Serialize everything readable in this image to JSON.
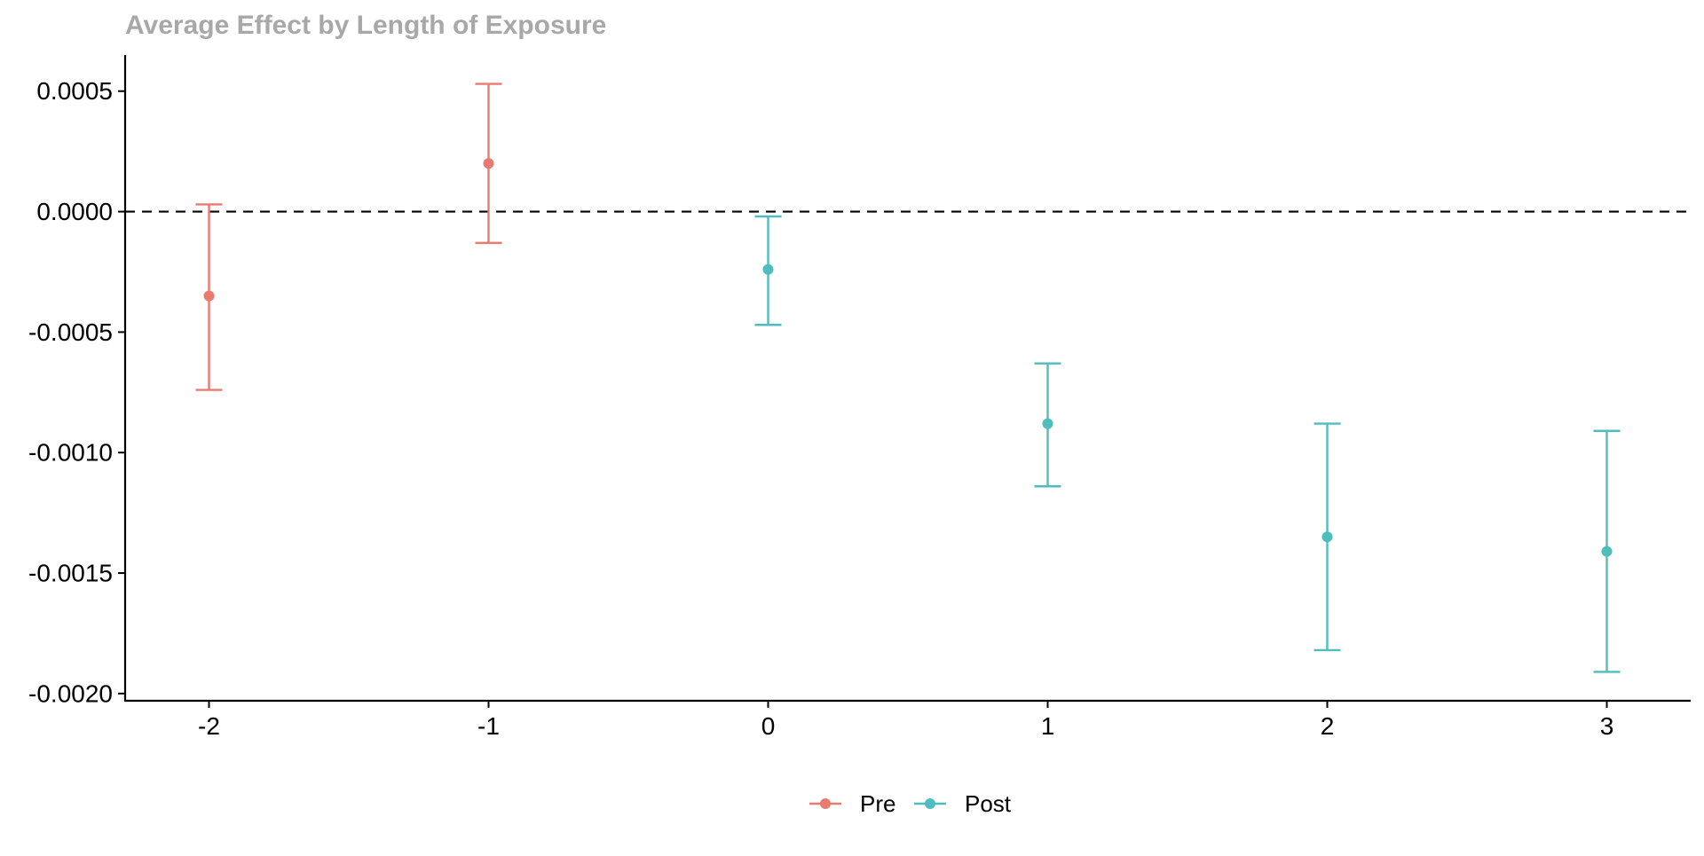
{
  "chart_data": {
    "type": "scatter",
    "subtype": "point-with-errorbars",
    "title": "Average Effect by Length of Exposure",
    "xlabel": "",
    "ylabel": "",
    "x_ticks": [
      -2,
      -1,
      0,
      1,
      2,
      3
    ],
    "x_tick_labels": [
      "-2",
      "-1",
      "0",
      "1",
      "2",
      "3"
    ],
    "xlim": [
      -2.3,
      3.3
    ],
    "y_ticks": [
      0.0005,
      0.0,
      -0.0005,
      -0.001,
      -0.0015,
      -0.002
    ],
    "y_tick_labels": [
      "0.0005",
      "0.0000",
      "-0.0005",
      "-0.0010",
      "-0.0015",
      "-0.0020"
    ],
    "ylim": [
      -0.00203,
      0.00065
    ],
    "reference_line": {
      "y": 0,
      "style": "dashed"
    },
    "grid": false,
    "legend_position": "bottom",
    "series": [
      {
        "name": "Pre",
        "color": "#E87B70",
        "points": [
          {
            "x": -2,
            "y": -0.00035,
            "lower": -0.00074,
            "upper": 3e-05
          },
          {
            "x": -1,
            "y": 0.0002,
            "lower": -0.00013,
            "upper": 0.00053
          }
        ]
      },
      {
        "name": "Post",
        "color": "#4FBDBE",
        "points": [
          {
            "x": 0,
            "y": -0.00024,
            "lower": -0.00047,
            "upper": -2e-05
          },
          {
            "x": 1,
            "y": -0.00088,
            "lower": -0.00114,
            "upper": -0.00063
          },
          {
            "x": 2,
            "y": -0.00135,
            "lower": -0.00182,
            "upper": -0.00088
          },
          {
            "x": 3,
            "y": -0.00141,
            "lower": -0.00191,
            "upper": -0.00091
          }
        ]
      }
    ]
  }
}
